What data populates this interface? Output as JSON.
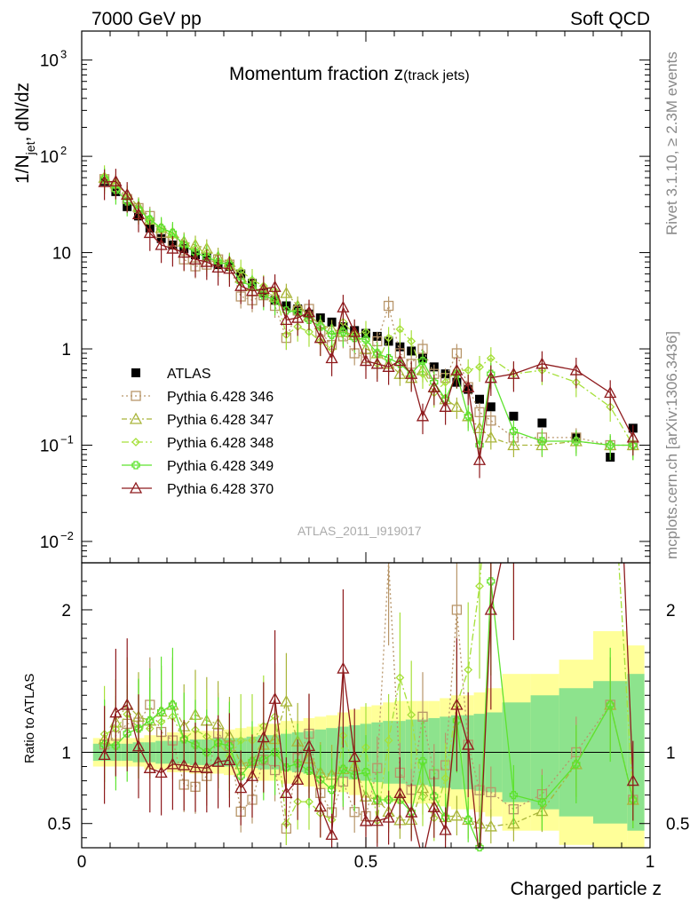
{
  "header": {
    "energy_label": "7000 GeV pp",
    "process_label": "Soft QCD",
    "side_label_top": "Rivet 3.1.10, ≥ 2.3M events",
    "side_label_bottom": "mcplots.cern.ch [arXiv:1306.3436]"
  },
  "chart_data": [
    {
      "type": "scatter",
      "title": "Momentum fraction z",
      "title_sub": "(track jets)",
      "ylabel": "1/N_jet dN/dz",
      "ylabel_parts": [
        "1/N",
        "jet",
        ", dN/dz"
      ],
      "watermark": "ATLAS_2011_I919017",
      "yscale": "log",
      "ylim": [
        0.006,
        2000
      ],
      "xlim": [
        0,
        1
      ],
      "ytick_labels": [
        {
          "v": 0.01,
          "base": "10",
          "exp": "−2"
        },
        {
          "v": 0.1,
          "base": "10",
          "exp": "−1"
        },
        {
          "v": 1,
          "base": "1",
          "exp": ""
        },
        {
          "v": 10,
          "base": "10",
          "exp": ""
        },
        {
          "v": 100,
          "base": "10",
          "exp": "2"
        },
        {
          "v": 1000,
          "base": "10",
          "exp": "3"
        }
      ],
      "legend_position": "center-left",
      "x": [
        0.04,
        0.06,
        0.08,
        0.1,
        0.12,
        0.14,
        0.16,
        0.18,
        0.2,
        0.22,
        0.24,
        0.26,
        0.28,
        0.3,
        0.32,
        0.34,
        0.36,
        0.38,
        0.4,
        0.42,
        0.44,
        0.46,
        0.48,
        0.5,
        0.52,
        0.54,
        0.56,
        0.58,
        0.6,
        0.62,
        0.64,
        0.66,
        0.68,
        0.7,
        0.72,
        0.76,
        0.81,
        0.87,
        0.93,
        0.97
      ],
      "series": [
        {
          "name": "ATLAS",
          "color": "#000000",
          "marker": "square-filled",
          "dash": "",
          "values": [
            55,
            43,
            30,
            24,
            18,
            14,
            12,
            11,
            9.5,
            9,
            7.5,
            7.2,
            6,
            4.8,
            3.8,
            3.2,
            2.8,
            2.6,
            2.3,
            2.1,
            1.9,
            1.7,
            1.55,
            1.45,
            1.35,
            1.2,
            1.05,
            0.95,
            0.8,
            0.65,
            0.55,
            0.45,
            0.38,
            0.3,
            0.25,
            0.2,
            0.17,
            0.12,
            0.075,
            0.15
          ],
          "rel_err": 0.08
        },
        {
          "name": "Pythia 6.428 346",
          "color": "#b8966a",
          "marker": "square-open",
          "dash": "2,3",
          "values": [
            58,
            48,
            36,
            29,
            24,
            16,
            13,
            8.5,
            7.2,
            7.5,
            8.5,
            7.5,
            3.5,
            3.2,
            3.6,
            2.8,
            1.3,
            2.5,
            2.6,
            1.5,
            1.1,
            1.35,
            0.9,
            0.8,
            1.2,
            2.8,
            0.9,
            0.7,
            1.0,
            0.55,
            0.5,
            0.9,
            0.4,
            0.22,
            0.18,
            0.12,
            0.12,
            0.12,
            0.1,
            0.1
          ],
          "rel_err": 0.25
        },
        {
          "name": "Pythia 6.428 347",
          "color": "#a9b53a",
          "marker": "triangle-open",
          "dash": "6,3,2,3",
          "values": [
            60,
            52,
            40,
            30,
            22,
            18,
            16,
            13,
            12,
            11,
            9,
            8,
            5.5,
            4.5,
            4,
            3.5,
            3.8,
            2.8,
            2.2,
            1.8,
            1.6,
            1.5,
            1.4,
            1.0,
            0.9,
            0.7,
            0.55,
            0.5,
            0.6,
            0.4,
            0.3,
            0.25,
            0.2,
            0.15,
            0.12,
            0.1,
            0.1,
            0.11,
            0.1,
            0.1
          ],
          "rel_err": 0.25
        },
        {
          "name": "Pythia 6.428 348",
          "color": "#a6e03a",
          "marker": "diamond-open",
          "dash": "8,3,2,3",
          "values": [
            62,
            50,
            38,
            28,
            21,
            17,
            15,
            12,
            11,
            10,
            8,
            7,
            6.5,
            5.2,
            4.5,
            4,
            1.4,
            1.7,
            1.5,
            1.2,
            1.0,
            1.9,
            1.4,
            1.5,
            0.7,
            1.3,
            1.6,
            1.2,
            0.55,
            0.35,
            0.45,
            0.6,
            0.6,
            0.65,
            0.8,
            0.55,
            0.6,
            0.45,
            0.25,
            0.1
          ],
          "rel_err": 0.3
        },
        {
          "name": "Pythia 6.428 349",
          "color": "#5de32e",
          "marker": "cross-open",
          "dash": "",
          "values": [
            58,
            45,
            34,
            28,
            22,
            18,
            16,
            12,
            10,
            9,
            8,
            7.5,
            5,
            4.5,
            3.6,
            3.2,
            2.5,
            2.4,
            2.0,
            1.7,
            1.4,
            1.5,
            1.3,
            1.25,
            0.9,
            0.8,
            0.7,
            0.55,
            0.75,
            0.45,
            0.3,
            0.55,
            0.2,
            0.1,
            0.55,
            0.14,
            0.11,
            0.11,
            0.1,
            0.1
          ],
          "rel_err": 0.3
        },
        {
          "name": "Pythia 6.428 370",
          "color": "#8e1a1d",
          "marker": "triangle-open",
          "dash": "",
          "values": [
            54,
            55,
            40,
            25,
            16,
            12,
            11,
            10,
            8.5,
            8,
            7,
            6.8,
            4.5,
            4,
            4.2,
            4.4,
            2.0,
            2.1,
            2.4,
            1.3,
            0.8,
            2.7,
            1.5,
            0.75,
            0.7,
            0.65,
            0.75,
            0.55,
            0.2,
            0.4,
            0.25,
            0.6,
            0.4,
            0.07,
            0.5,
            0.55,
            0.7,
            0.6,
            0.35,
            0.12
          ],
          "rel_err": 0.35
        }
      ]
    },
    {
      "type": "scatter",
      "title": "",
      "xlabel": "Charged particle z",
      "ylabel": "Ratio to ATLAS",
      "xlim": [
        0,
        1
      ],
      "ylim": [
        0.33,
        2.33
      ],
      "ytick_labels": [
        "0.5",
        "1",
        "2"
      ],
      "xtick_labels": [
        "0",
        "0.5",
        "1"
      ],
      "band_outer_color": "#ffff99",
      "band_inner_color": "#8de38d",
      "band_edges": [
        0.02,
        0.05,
        0.07,
        0.09,
        0.11,
        0.13,
        0.15,
        0.17,
        0.19,
        0.21,
        0.23,
        0.25,
        0.27,
        0.29,
        0.31,
        0.33,
        0.35,
        0.37,
        0.39,
        0.41,
        0.43,
        0.45,
        0.47,
        0.49,
        0.51,
        0.53,
        0.55,
        0.57,
        0.59,
        0.61,
        0.63,
        0.65,
        0.67,
        0.69,
        0.71,
        0.74,
        0.79,
        0.84,
        0.9,
        0.96,
        0.99
      ],
      "band_outer_rel": [
        0.1,
        0.1,
        0.1,
        0.1,
        0.12,
        0.12,
        0.14,
        0.14,
        0.15,
        0.15,
        0.15,
        0.16,
        0.17,
        0.18,
        0.2,
        0.2,
        0.22,
        0.22,
        0.24,
        0.25,
        0.26,
        0.28,
        0.3,
        0.32,
        0.33,
        0.35,
        0.36,
        0.36,
        0.36,
        0.36,
        0.38,
        0.4,
        0.4,
        0.42,
        0.45,
        0.55,
        0.55,
        0.65,
        0.85,
        0.75
      ],
      "band_inner_rel": [
        0.06,
        0.06,
        0.06,
        0.07,
        0.07,
        0.08,
        0.08,
        0.08,
        0.09,
        0.09,
        0.1,
        0.1,
        0.1,
        0.11,
        0.12,
        0.12,
        0.13,
        0.14,
        0.15,
        0.16,
        0.17,
        0.18,
        0.19,
        0.2,
        0.21,
        0.22,
        0.22,
        0.23,
        0.23,
        0.24,
        0.25,
        0.26,
        0.26,
        0.27,
        0.28,
        0.35,
        0.4,
        0.45,
        0.5,
        0.55
      ]
    }
  ]
}
